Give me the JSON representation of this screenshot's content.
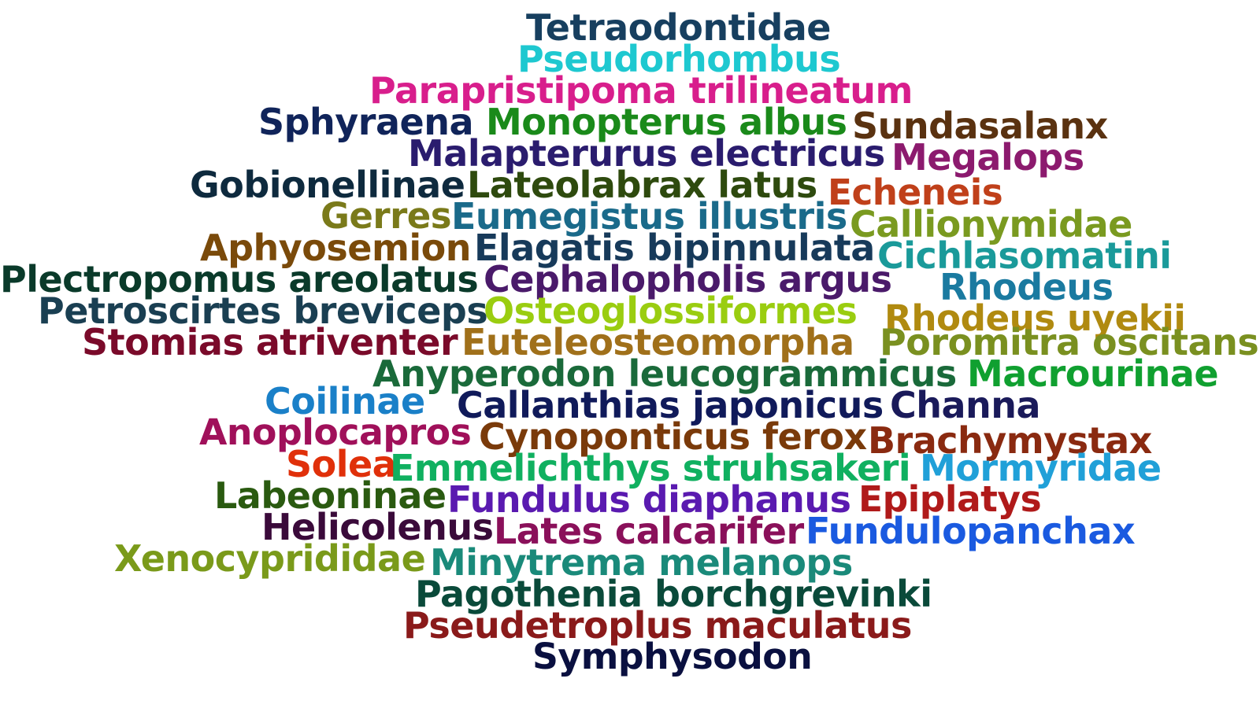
{
  "words": [
    {
      "text": "Tetraodontidae",
      "color": "#173f5f"
    },
    {
      "text": "Pseudorhombus",
      "color": "#1ec8d0"
    },
    {
      "text": "Parapristipoma trilineatum",
      "color": "#d81e8c"
    },
    {
      "text": "Sphyraena",
      "color": "#10245a"
    },
    {
      "text": "Monopterus albus",
      "color": "#1a8a1a"
    },
    {
      "text": "Sundasalanx",
      "color": "#5a3210"
    },
    {
      "text": "Malapterurus electricus",
      "color": "#2a1c6e"
    },
    {
      "text": "Megalops",
      "color": "#8c1a6e"
    },
    {
      "text": "Gobionellinae",
      "color": "#0e2a3e"
    },
    {
      "text": "Lateolabrax latus",
      "color": "#2e4a0e"
    },
    {
      "text": "Echeneis",
      "color": "#c0401a"
    },
    {
      "text": "Gerres",
      "color": "#7a7a1a"
    },
    {
      "text": "Eumegistus illustris",
      "color": "#1a6a8a"
    },
    {
      "text": "Callionymidae",
      "color": "#7a9a20"
    },
    {
      "text": "Aphyosemion",
      "color": "#7a4a0a"
    },
    {
      "text": "Elagatis bipinnulata",
      "color": "#173a5a"
    },
    {
      "text": "Cichlasomatini",
      "color": "#1a9a9a"
    },
    {
      "text": "Plectropomus areolatus",
      "color": "#0a3a2a"
    },
    {
      "text": "Cephalopholis argus",
      "color": "#4a1a6a"
    },
    {
      "text": "Rhodeus",
      "color": "#1a7aa0"
    },
    {
      "text": "Petroscirtes breviceps",
      "color": "#1a3f52"
    },
    {
      "text": "Osteoglossiformes",
      "color": "#9acd10"
    },
    {
      "text": "Rhodeus uyekii",
      "color": "#b08a10"
    },
    {
      "text": "Stomias atriventer",
      "color": "#7a0a2a"
    },
    {
      "text": "Euteleosteomorpha",
      "color": "#a0701a"
    },
    {
      "text": "Poromitra oscitans",
      "color": "#7a9020"
    },
    {
      "text": "Anyperodon leucogrammicus",
      "color": "#1a6a3a"
    },
    {
      "text": "Macrourinae",
      "color": "#10a030"
    },
    {
      "text": "Coilinae",
      "color": "#1a80c8"
    },
    {
      "text": "Callanthias japonicus",
      "color": "#101a5a"
    },
    {
      "text": "Channa",
      "color": "#1a1a5a"
    },
    {
      "text": "Anoplocapros",
      "color": "#a0105a"
    },
    {
      "text": "Cynoponticus ferox",
      "color": "#7a3a0a"
    },
    {
      "text": "Brachymystax",
      "color": "#8a2a10"
    },
    {
      "text": "Solea",
      "color": "#e0300a"
    },
    {
      "text": "Emmelichthys struhsakeri",
      "color": "#10b060"
    },
    {
      "text": "Mormyridae",
      "color": "#20a0d8"
    },
    {
      "text": "Labeoninae",
      "color": "#2a5a10"
    },
    {
      "text": "Fundulus diaphanus",
      "color": "#5a1ab0"
    },
    {
      "text": "Epiplatys",
      "color": "#b01a1a"
    },
    {
      "text": "Helicolenus",
      "color": "#3a0a3a"
    },
    {
      "text": "Lates calcarifer",
      "color": "#8a105a"
    },
    {
      "text": "Fundulopanchax",
      "color": "#1a5ae0"
    },
    {
      "text": "Xenocyprididae",
      "color": "#7a9a1a"
    },
    {
      "text": "Minytrema melanops",
      "color": "#1a8a7a"
    },
    {
      "text": "Pagothenia borchgrevinki",
      "color": "#0a4a3a"
    },
    {
      "text": "Pseudetroplus maculatus",
      "color": "#8a1a1a"
    },
    {
      "text": "Symphysodon",
      "color": "#0a1040"
    }
  ]
}
